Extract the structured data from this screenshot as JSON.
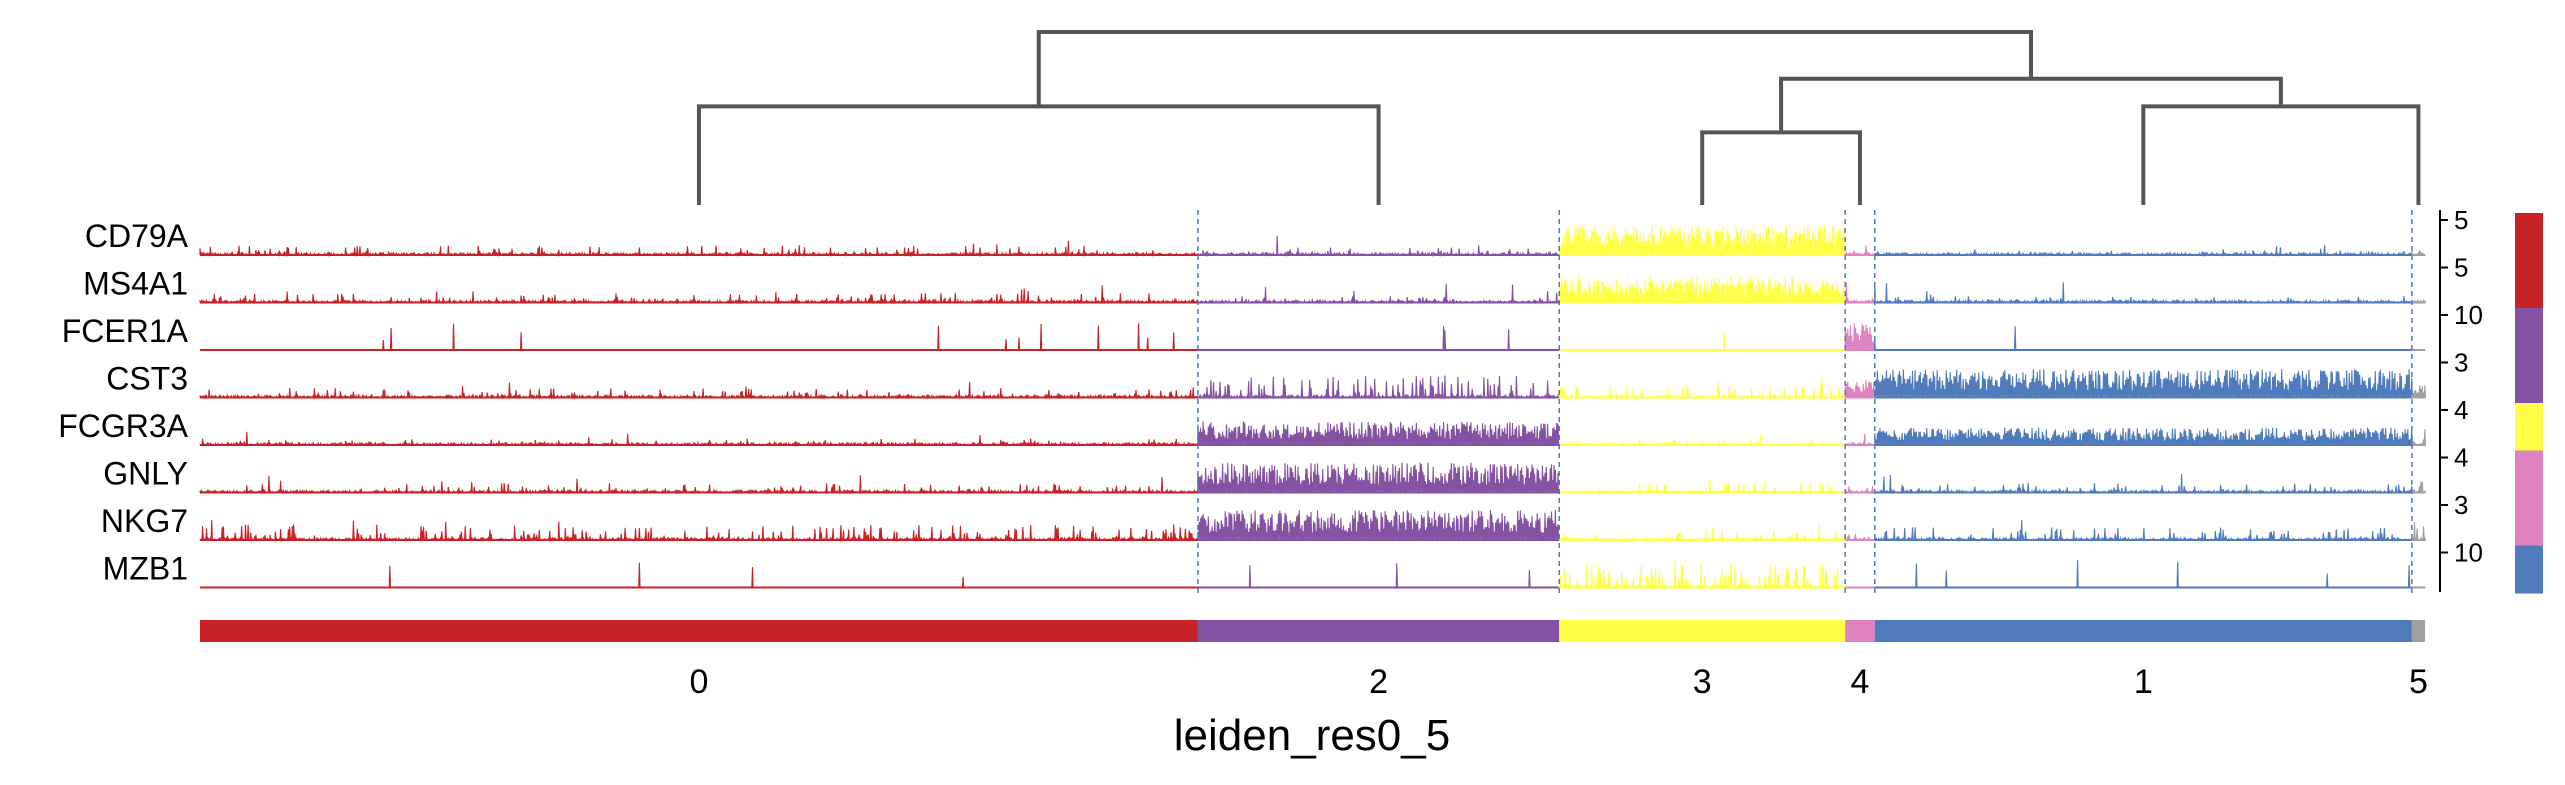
{
  "chart_data": {
    "type": "track",
    "xlabel": "leiden_res0_5",
    "genes": [
      "CD79A",
      "MS4A1",
      "FCER1A",
      "CST3",
      "FCGR3A",
      "GNLY",
      "NKG7",
      "MZB1"
    ],
    "cluster_order": [
      "0",
      "2",
      "3",
      "4",
      "1",
      "5"
    ],
    "cluster_fractions": [
      0.4485,
      0.1624,
      0.1285,
      0.0133,
      0.2414,
      0.0059
    ],
    "cluster_colors": [
      "#C72227",
      "#8551A2",
      "#FFFF47",
      "#DF82C0",
      "#4F7BBC",
      "#A0A0A0"
    ],
    "gene_max_expression": [
      5,
      5,
      10,
      3,
      4,
      4,
      3,
      10
    ],
    "gene_group_colors": [
      "#C72227",
      "#C72227",
      "#8551A2",
      "#8551A2",
      "#FFFF47",
      "#DF82C0",
      "#DF82C0",
      "#4F7BBC"
    ],
    "mean_expression": {
      "CD79A": [
        0.15,
        0.12,
        0.95,
        0.2,
        0.1,
        0.1
      ],
      "MS4A1": [
        0.15,
        0.1,
        0.85,
        0.1,
        0.1,
        0.1
      ],
      "FCER1A": [
        0.02,
        0.02,
        0.01,
        0.95,
        0.02,
        0.05
      ],
      "CST3": [
        0.15,
        0.35,
        0.2,
        0.6,
        0.9,
        0.5
      ],
      "FCGR3A": [
        0.1,
        0.75,
        0.1,
        0.2,
        0.55,
        0.3
      ],
      "GNLY": [
        0.15,
        0.95,
        0.15,
        0.2,
        0.15,
        0.2
      ],
      "NKG7": [
        0.25,
        0.95,
        0.15,
        0.3,
        0.2,
        0.3
      ],
      "MZB1": [
        0.03,
        0.05,
        0.4,
        0.03,
        0.02,
        0.05
      ]
    },
    "dendrogram": {
      "leaves": [
        "0",
        "2",
        "3",
        "4",
        "1",
        "5"
      ],
      "merges": [
        {
          "left": "0",
          "right": "2",
          "height": 0.57
        },
        {
          "left": "3",
          "right": "4",
          "height": 0.42
        },
        {
          "left": "1",
          "right": "5",
          "height": 0.57
        },
        {
          "left": "3+4",
          "right": "1+5",
          "height": 0.73
        },
        {
          "left": "0+2",
          "right": "3+4+1+5",
          "height": 1.0
        }
      ]
    }
  }
}
